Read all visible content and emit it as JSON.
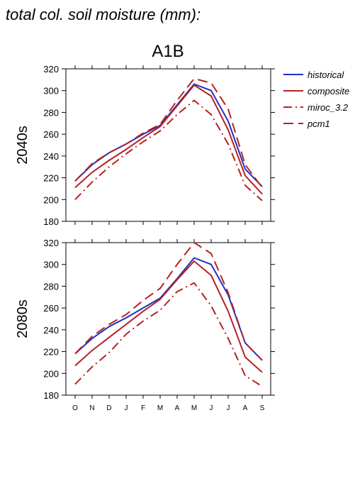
{
  "figure_title": "total col. soil moisture (mm):",
  "chart_data": {
    "type": "line",
    "scenario_title": "A1B",
    "xlabel": "",
    "ylabel": "",
    "categories": [
      "O",
      "N",
      "D",
      "J",
      "F",
      "M",
      "A",
      "M",
      "J",
      "J",
      "A",
      "S"
    ],
    "yticks": [
      180,
      200,
      220,
      240,
      260,
      280,
      300,
      320
    ],
    "ylim": [
      180,
      320
    ],
    "grid": false,
    "legend_position": "right",
    "series_styles": {
      "historical": {
        "color": "#1f2fbf",
        "dash": "solid"
      },
      "composite": {
        "color": "#b52222",
        "dash": "solid"
      },
      "miroc_3.2": {
        "color": "#b52222",
        "dash": "dashdot"
      },
      "pcm1": {
        "color": "#b52222",
        "dash": "dashed"
      }
    },
    "legend": [
      "historical",
      "composite",
      "miroc_3.2",
      "pcm1"
    ],
    "panels": [
      {
        "row_label": "2040s",
        "series": [
          {
            "name": "historical",
            "values": [
              217,
              232,
              243,
              251,
              260,
              268,
              287,
              306,
              300,
              272,
              228,
              212
            ]
          },
          {
            "name": "composite",
            "values": [
              211,
              225,
              236,
              246,
              257,
              267,
              286,
              305,
              295,
              264,
              222,
              205
            ]
          },
          {
            "name": "miroc_3.2",
            "values": [
              200,
              216,
              230,
              242,
              253,
              263,
              278,
              291,
              278,
              251,
              213,
              199
            ]
          },
          {
            "name": "pcm1",
            "values": [
              217,
              233,
              243,
              251,
              261,
              269,
              291,
              311,
              307,
              283,
              232,
              211
            ]
          }
        ]
      },
      {
        "row_label": "2080s",
        "series": [
          {
            "name": "historical",
            "values": [
              218,
              232,
              243,
              251,
              260,
              269,
              287,
              306,
              300,
              272,
              228,
              212
            ]
          },
          {
            "name": "composite",
            "values": [
              207,
              221,
              233,
              245,
              257,
              268,
              286,
              303,
              290,
              257,
              215,
              201
            ]
          },
          {
            "name": "miroc_3.2",
            "values": [
              190,
              206,
              219,
              236,
              248,
              258,
              275,
              283,
              262,
              232,
              198,
              188
            ]
          },
          {
            "name": "pcm1",
            "values": [
              218,
              234,
              245,
              254,
              267,
              278,
              300,
              320,
              310,
              274,
              228,
              212
            ]
          }
        ]
      }
    ]
  }
}
